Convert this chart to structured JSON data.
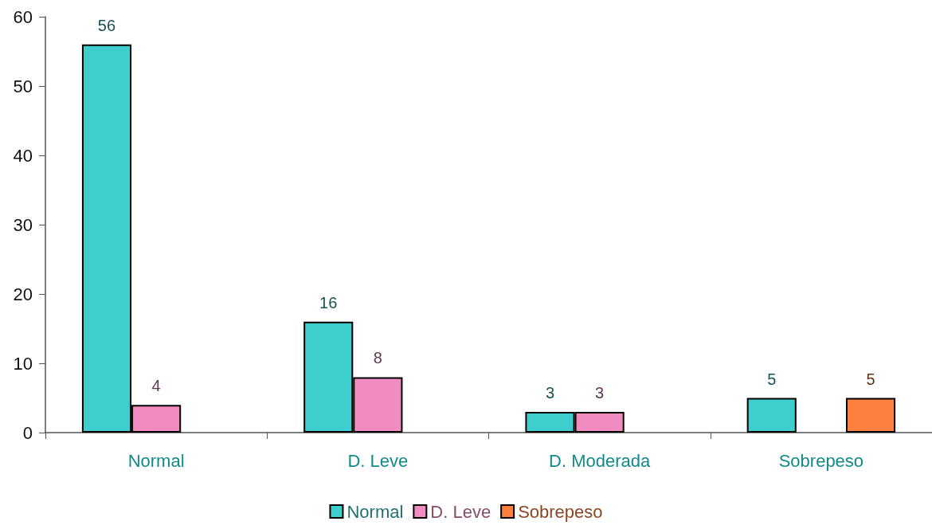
{
  "chart_data": {
    "type": "bar",
    "categories": [
      "Normal",
      "D. Leve",
      "D. Moderada",
      "Sobrepeso"
    ],
    "series": [
      {
        "name": "Normal",
        "color": "#3ecece",
        "values": [
          56,
          16,
          3,
          5
        ]
      },
      {
        "name": "D. Leve",
        "color": "#f08cc0",
        "values": [
          4,
          8,
          3,
          null
        ]
      },
      {
        "name": "Sobrepeso",
        "color": "#ff7f3f",
        "values": [
          null,
          null,
          null,
          5
        ]
      }
    ],
    "ylim": [
      0,
      60
    ],
    "yticks": [
      0,
      10,
      20,
      30,
      40,
      50,
      60
    ],
    "grid": false,
    "legend": "bottom",
    "data_labels": true
  }
}
